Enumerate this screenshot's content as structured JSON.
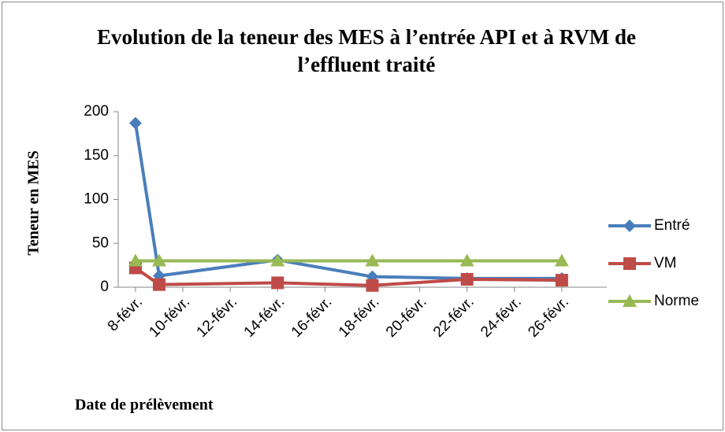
{
  "chart_data": {
    "type": "line",
    "title": "Evolution de la teneur des MES à l’entrée API et à RVM de l’effluent traité",
    "x_label": "Date de prélèvement",
    "y_label": "Teneur en MES",
    "x": [
      8,
      9,
      14,
      18,
      22,
      26
    ],
    "xlim": [
      7.27,
      27.9
    ],
    "xticks": [
      {
        "value": 8,
        "label": "8-févr."
      },
      {
        "value": 10,
        "label": "10-févr."
      },
      {
        "value": 12,
        "label": "12-févr."
      },
      {
        "value": 14,
        "label": "14-févr."
      },
      {
        "value": 16,
        "label": "16-févr."
      },
      {
        "value": 18,
        "label": "18-févr."
      },
      {
        "value": 20,
        "label": "20-févr."
      },
      {
        "value": 22,
        "label": "22-févr."
      },
      {
        "value": 24,
        "label": "24-févr."
      },
      {
        "value": 26,
        "label": "26-févr."
      }
    ],
    "ylim": [
      0,
      200
    ],
    "yticks": [
      0,
      50,
      100,
      150,
      200
    ],
    "legend": "right",
    "series": [
      {
        "name": "Entré",
        "color": "#4a7ebb",
        "marker": "diamond",
        "values": [
          187,
          13,
          31,
          12,
          10,
          10
        ]
      },
      {
        "name": "VM",
        "color": "#be4b48",
        "marker": "square",
        "values": [
          22,
          3,
          5,
          2,
          9,
          8
        ]
      },
      {
        "name": "Norme",
        "color": "#98b954",
        "marker": "triangle",
        "values": [
          30,
          30,
          30,
          30,
          30,
          30
        ]
      }
    ]
  }
}
